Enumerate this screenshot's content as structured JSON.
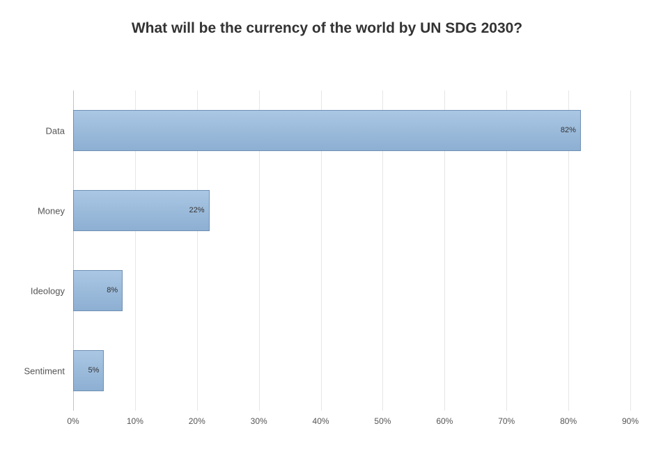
{
  "chart": {
    "type": "bar-horizontal",
    "title": "What will be the currency of the world by UN SDG 2030?",
    "title_fontsize": 21,
    "title_color": "#333333",
    "background_color": "#ffffff",
    "plot_background": "#ffffff",
    "x": {
      "min": 0,
      "max": 90,
      "tick_step": 10,
      "tick_suffix": "%",
      "ticks": [
        0,
        10,
        20,
        30,
        40,
        50,
        60,
        70,
        80,
        90
      ],
      "gridline_color": "#e6e6e6",
      "axis_line_color": "#c3c3c3",
      "tick_font_size": 12,
      "tick_color": "#555555"
    },
    "y": {
      "categories": [
        "Data",
        "Money",
        "Ideology",
        "Sentiment"
      ],
      "tick_font_size": 13,
      "tick_color": "#555555"
    },
    "bars": {
      "values": [
        82,
        22,
        8,
        5
      ],
      "value_suffix": "%",
      "fill_top": "#aac7e4",
      "fill_bottom": "#8dafd2",
      "border_color": "#6e8fb3",
      "border_width": 1,
      "label_font_size": 11,
      "label_color": "#333333",
      "label_position": "inside-right",
      "band_height_ratio": 0.52
    }
  }
}
